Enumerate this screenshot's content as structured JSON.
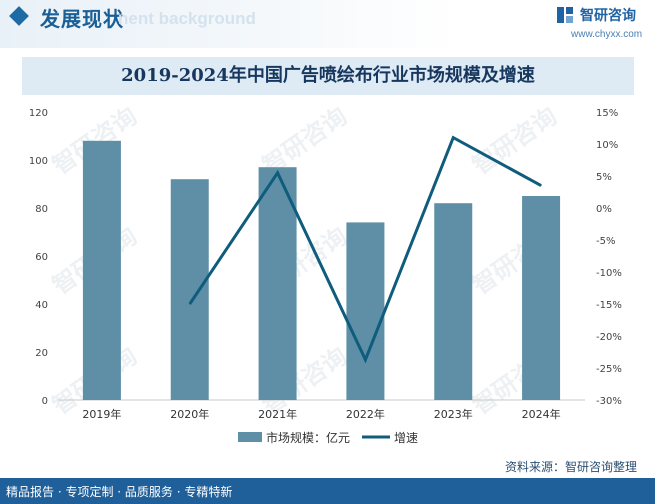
{
  "header": {
    "title": "发展现状",
    "ghost_text": "nent background",
    "logo_name": "智研咨询",
    "logo_url": "www.chyxx.com"
  },
  "footer": {
    "tagline": "精品报告 · 专项定制 · 品质服务 · 专精特新",
    "source": "资料来源：智研咨询整理"
  },
  "colors": {
    "bar": "#5e8fa6",
    "line": "#0f5c7d",
    "title_band": "#deebf5",
    "brand": "#1d6aa5"
  },
  "chart_data": {
    "type": "bar",
    "title": "2019-2024年中国广告喷绘布行业市场规模及增速",
    "categories": [
      "2019年",
      "2020年",
      "2021年",
      "2022年",
      "2023年",
      "2024年"
    ],
    "series": [
      {
        "name": "市场规模：亿元",
        "type": "bar",
        "axis": "left",
        "values": [
          108,
          92,
          97,
          74,
          82,
          85
        ]
      },
      {
        "name": "增速",
        "type": "line",
        "axis": "right",
        "values": [
          null,
          -15,
          5.5,
          -23.7,
          11,
          3.5
        ],
        "unit": "%"
      }
    ],
    "y_left": {
      "min": 0,
      "max": 120,
      "ticks": [
        "0",
        "20",
        "40",
        "60",
        "80",
        "100",
        "120"
      ]
    },
    "y_right": {
      "min": -30,
      "max": 15,
      "ticks": [
        "-30%",
        "-25%",
        "-20%",
        "-15%",
        "-10%",
        "-5%",
        "0%",
        "5%",
        "10%",
        "15%"
      ]
    },
    "legend_position": "bottom",
    "grid": false
  }
}
